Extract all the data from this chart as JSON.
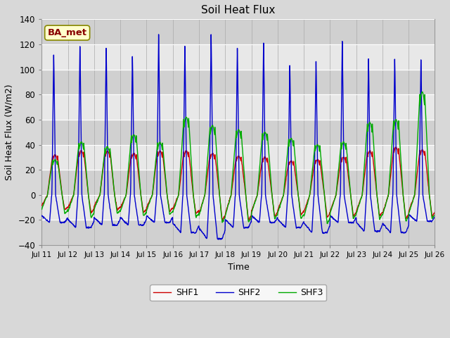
{
  "title": "Soil Heat Flux",
  "xlabel": "Time",
  "ylabel": "Soil Heat Flux (W/m2)",
  "ylim": [
    -40,
    140
  ],
  "yticks": [
    -40,
    -20,
    0,
    20,
    40,
    60,
    80,
    100,
    120,
    140
  ],
  "xtick_labels": [
    "Jul 11",
    "Jul 12",
    "Jul 13",
    "Jul 14",
    "Jul 15",
    "Jul 16",
    "Jul 17",
    "Jul 18",
    "Jul 19",
    "Jul 20",
    "Jul 21",
    "Jul 22",
    "Jul 23",
    "Jul 24",
    "Jul 25",
    "Jul 26"
  ],
  "legend_labels": [
    "SHF1",
    "SHF2",
    "SHF3"
  ],
  "legend_colors": [
    "#cc0000",
    "#0000cc",
    "#00aa00"
  ],
  "background_color": "#d8d8d8",
  "plot_bg_color": "#d0d0d0",
  "band_color_light": "#e8e8e8",
  "annotation_text": "BA_met",
  "annotation_bg": "#ffffcc",
  "annotation_border": "#888800",
  "annotation_text_color": "#880000",
  "shf2_peaks": [
    114,
    121,
    120,
    113,
    131,
    121,
    130,
    120,
    124,
    105,
    109,
    125,
    111,
    111,
    110
  ],
  "shf1_peaks": [
    32,
    35,
    35,
    33,
    35,
    35,
    33,
    31,
    30,
    27,
    28,
    30,
    35,
    38,
    36
  ],
  "shf3_peaks": [
    28,
    42,
    38,
    48,
    42,
    62,
    55,
    52,
    50,
    45,
    40,
    42,
    58,
    60,
    82
  ],
  "shf2_troughs": [
    -22,
    -26,
    -24,
    -24,
    -22,
    -30,
    -35,
    -26,
    -22,
    -26,
    -30,
    -22,
    -29,
    -30,
    -21
  ],
  "shf1_troughs": [
    -12,
    -14,
    -12,
    -14,
    -13,
    -15,
    -20,
    -20,
    -17,
    -16,
    -18,
    -17,
    -17,
    -19,
    -17
  ],
  "shf3_troughs": [
    -15,
    -18,
    -15,
    -17,
    -16,
    -18,
    -22,
    -22,
    -19,
    -19,
    -23,
    -19,
    -19,
    -21,
    -19
  ],
  "n_days": 15,
  "points_per_day": 96
}
